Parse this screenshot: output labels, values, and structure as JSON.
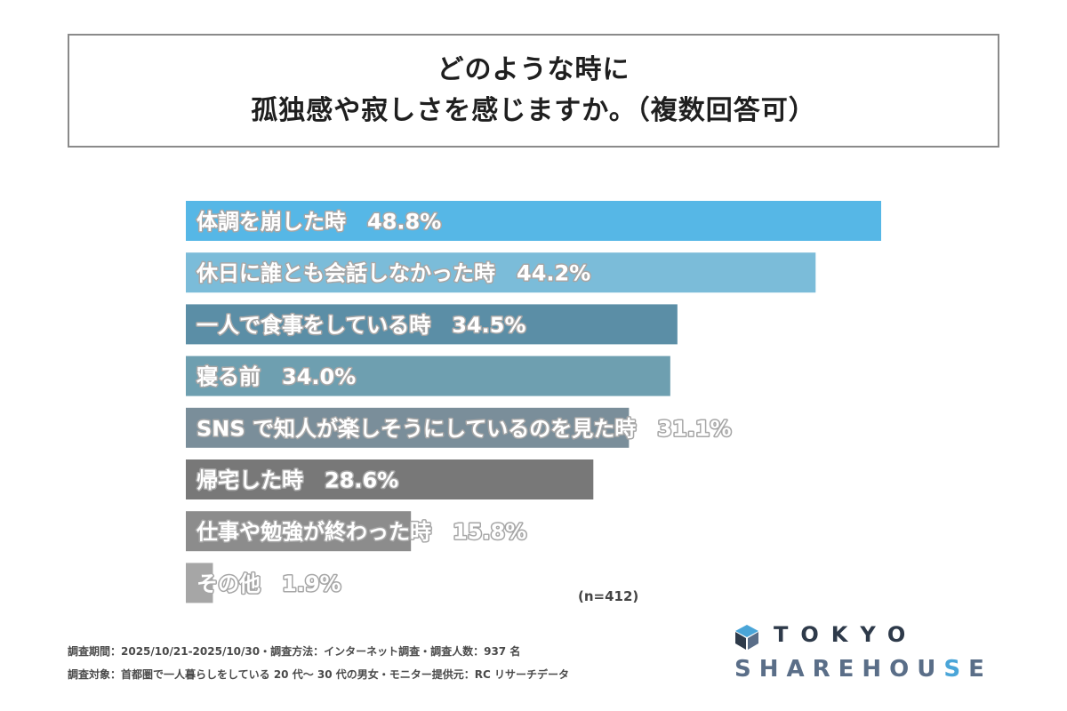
{
  "title": {
    "line1": "どのような時に",
    "line2": "孤独感や寂しさを感じますか。（複数回答可）"
  },
  "chart_data": {
    "type": "bar",
    "orientation": "horizontal",
    "unit": "%",
    "xlim": [
      0,
      48.8
    ],
    "grid": false,
    "categories": [
      "体調を崩した時",
      "休日に誰とも会話しなかった時",
      "一人で食事をしている時",
      "寝る前",
      "SNS で知人が楽しそうにしているのを見た時",
      "帰宅した時",
      "仕事や勉強が終わった時",
      "その他"
    ],
    "values": [
      48.8,
      44.2,
      34.5,
      34.0,
      31.1,
      28.6,
      15.8,
      1.9
    ],
    "value_labels": [
      "48.8%",
      "44.2%",
      "34.5%",
      "34.0%",
      "31.1%",
      "28.6%",
      "15.8%",
      "1.9%"
    ],
    "colors": [
      "#56b7e6",
      "#7bbcd9",
      "#5b8ea6",
      "#6e9fb0",
      "#7a8e9a",
      "#787878",
      "#8c8c8c",
      "#a6a6a6"
    ]
  },
  "sample_note": "(n=412)",
  "footnotes": {
    "line1": "調査期間：2025/10/21-2025/10/30・調査方法：インターネット調査・調査人数：937 名",
    "line2": "調査対象：首都圏で一人暮らしをしている 20 代～ 30 代の男女・モニター提供元：RC リサーチデータ"
  },
  "logo": {
    "top_text": "TOKYO",
    "bottom_text_main": "SHAREHOU",
    "bottom_text_accent": "S",
    "bottom_text_end": "E",
    "mark_color": "#2e3a4a",
    "accent_color": "#4aa5d8"
  }
}
